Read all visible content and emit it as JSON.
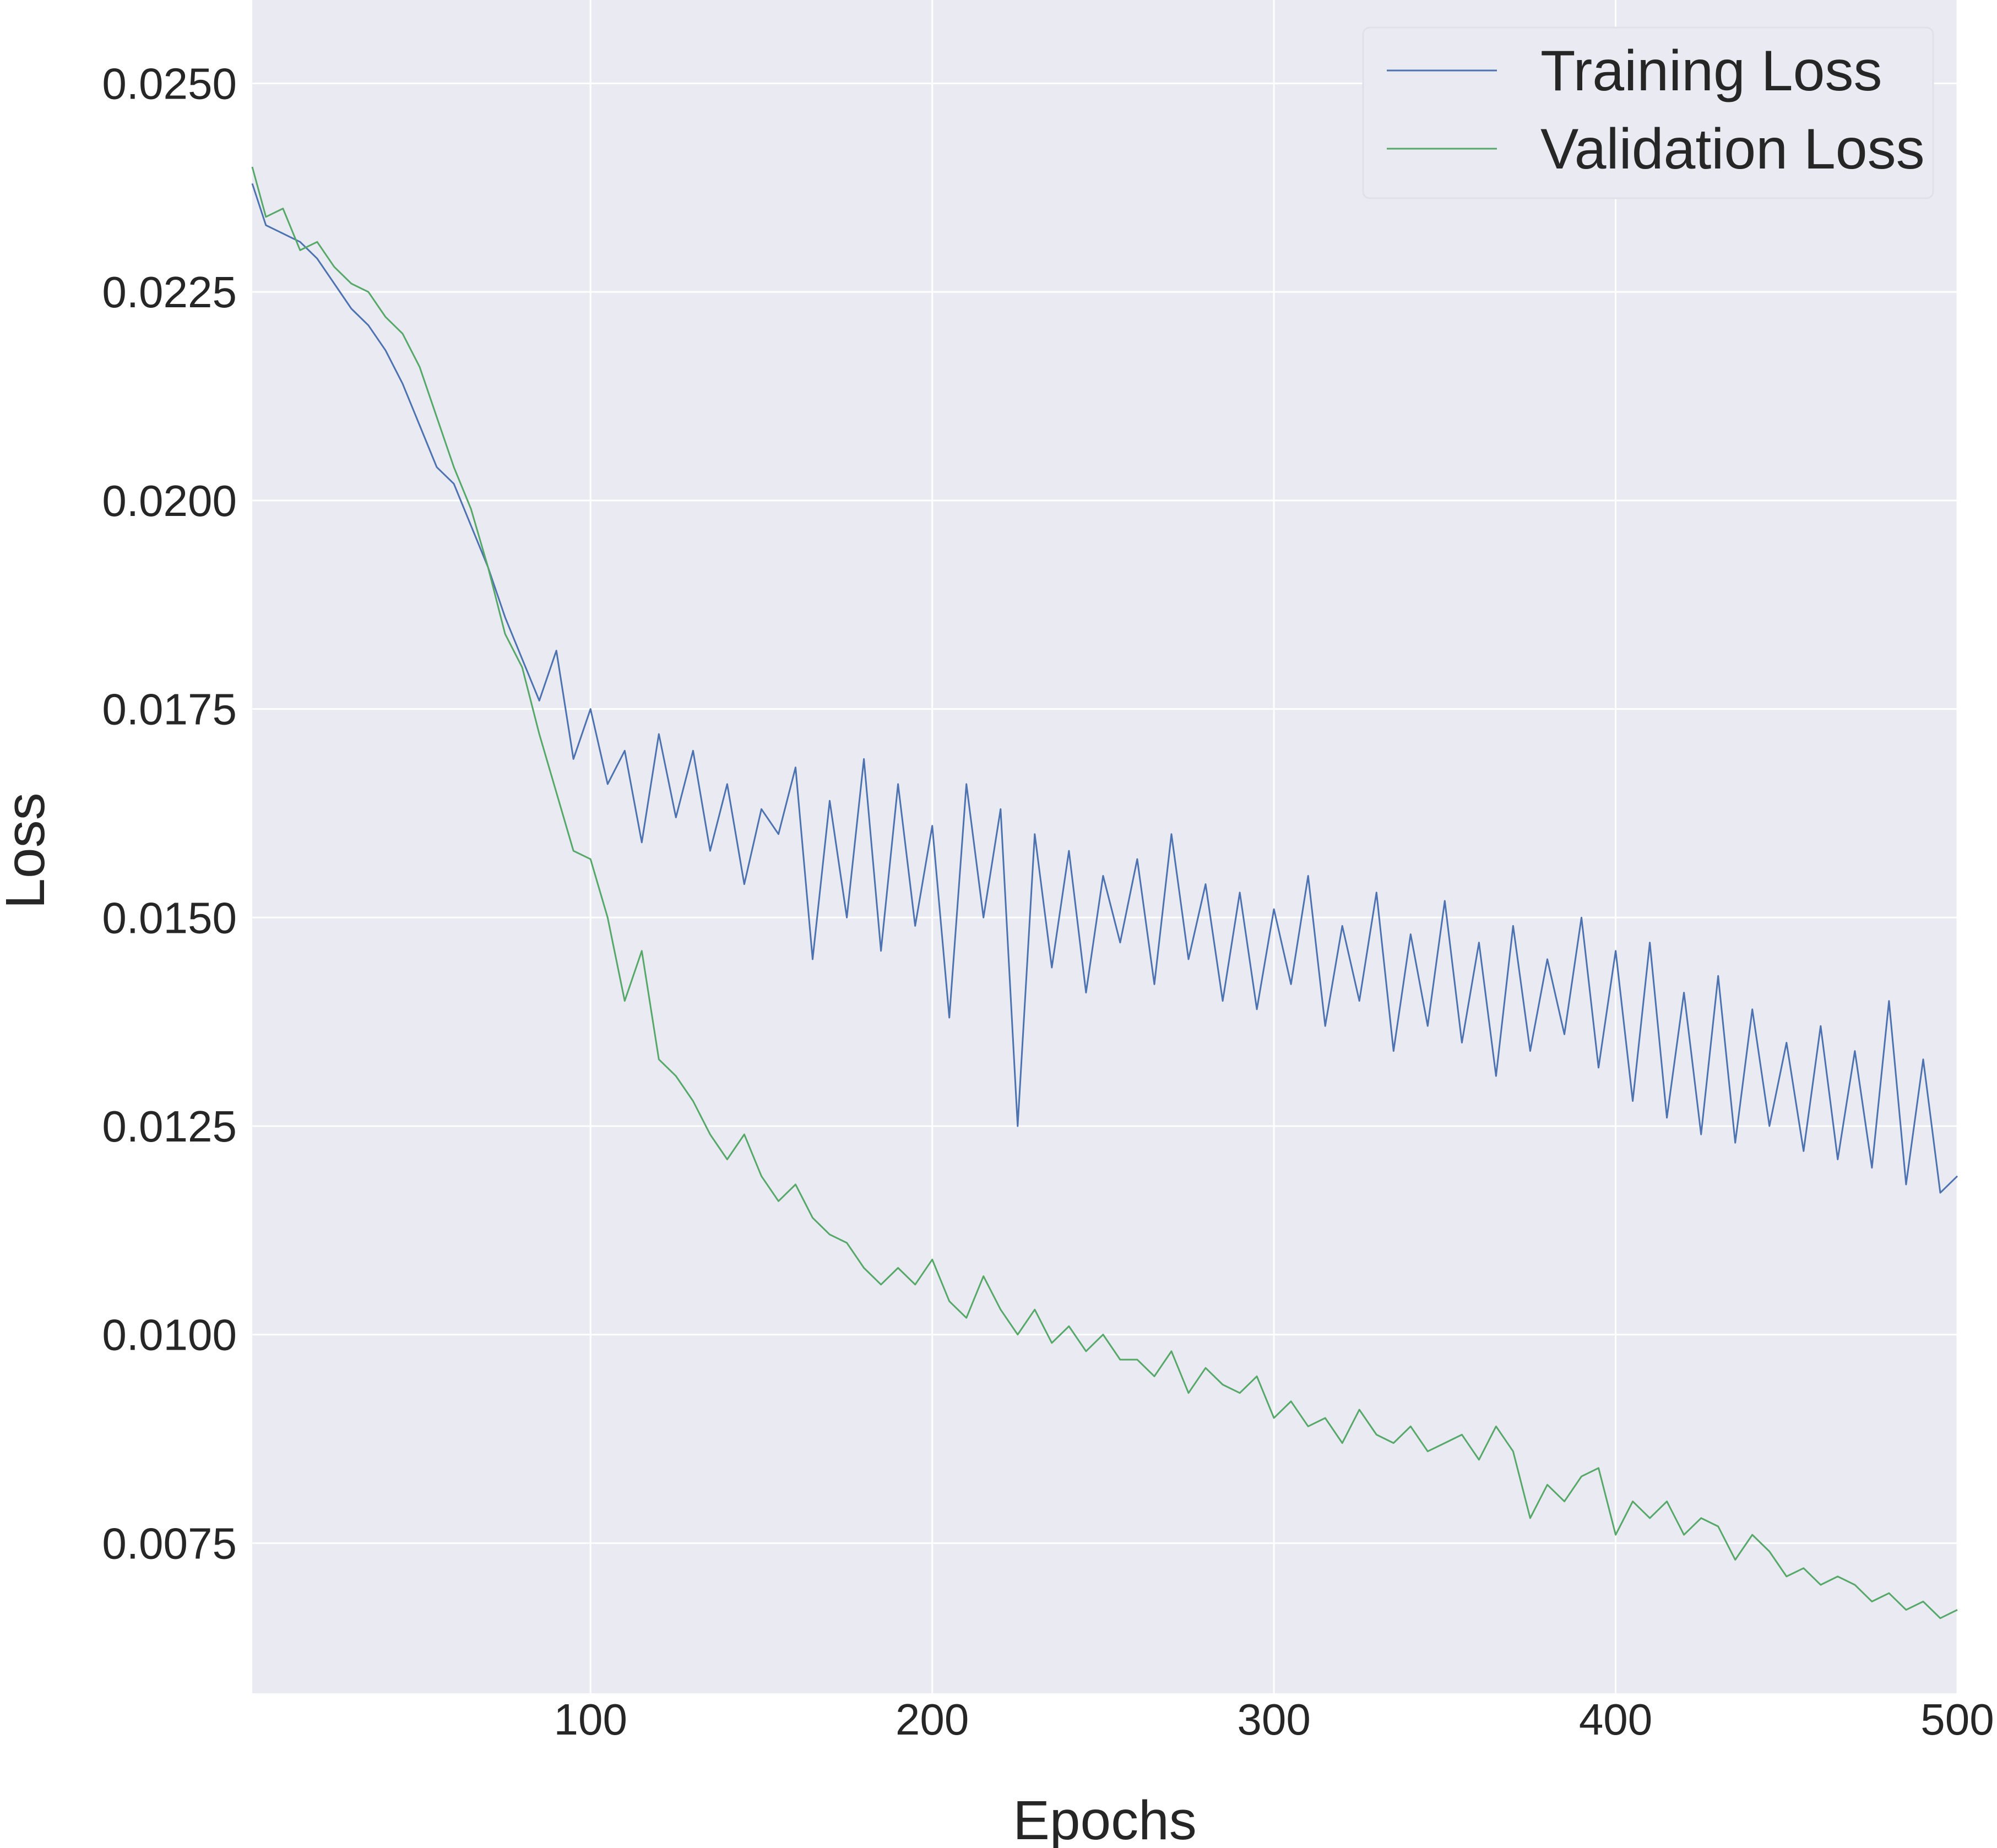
{
  "chart_data": {
    "type": "line",
    "title": "",
    "xlabel": "Epochs",
    "ylabel": "Loss",
    "xlim": [
      1,
      500
    ],
    "ylim": [
      0.0057,
      0.026
    ],
    "xticks": [
      100,
      200,
      300,
      400,
      500
    ],
    "xtick_labels": [
      "100",
      "200",
      "300",
      "400",
      "500"
    ],
    "yticks": [
      0.0075,
      0.01,
      0.0125,
      0.015,
      0.0175,
      0.02,
      0.0225,
      0.025
    ],
    "ytick_labels": [
      "0.0075",
      "0.0100",
      "0.0125",
      "0.0150",
      "0.0175",
      "0.0200",
      "0.0225",
      "0.0250"
    ],
    "grid": true,
    "legend_position": "top-right",
    "series": [
      {
        "name": "Training Loss",
        "color": "#4c72b0",
        "x": [
          1,
          5,
          10,
          15,
          20,
          25,
          30,
          35,
          40,
          45,
          50,
          55,
          60,
          65,
          70,
          75,
          80,
          85,
          90,
          95,
          100,
          105,
          110,
          115,
          120,
          125,
          130,
          135,
          140,
          145,
          150,
          155,
          160,
          165,
          170,
          175,
          180,
          185,
          190,
          195,
          200,
          205,
          210,
          215,
          220,
          225,
          230,
          235,
          240,
          245,
          250,
          255,
          260,
          265,
          270,
          275,
          280,
          285,
          290,
          295,
          300,
          305,
          310,
          315,
          320,
          325,
          330,
          335,
          340,
          345,
          350,
          355,
          360,
          365,
          370,
          375,
          380,
          385,
          390,
          395,
          400,
          405,
          410,
          415,
          420,
          425,
          430,
          435,
          440,
          445,
          450,
          455,
          460,
          465,
          470,
          475,
          480,
          485,
          490,
          495,
          500
        ],
        "values": [
          0.0238,
          0.0233,
          0.0232,
          0.0231,
          0.0229,
          0.0226,
          0.0223,
          0.0221,
          0.0218,
          0.0214,
          0.0209,
          0.0204,
          0.0202,
          0.0197,
          0.0192,
          0.0186,
          0.0181,
          0.0176,
          0.0182,
          0.0169,
          0.0175,
          0.0166,
          0.017,
          0.0159,
          0.0172,
          0.0162,
          0.017,
          0.0158,
          0.0166,
          0.0154,
          0.0163,
          0.016,
          0.0168,
          0.0145,
          0.0164,
          0.015,
          0.0169,
          0.0146,
          0.0166,
          0.0149,
          0.0161,
          0.0138,
          0.0166,
          0.015,
          0.0163,
          0.0125,
          0.016,
          0.0144,
          0.0158,
          0.0141,
          0.0155,
          0.0147,
          0.0157,
          0.0142,
          0.016,
          0.0145,
          0.0154,
          0.014,
          0.0153,
          0.0139,
          0.0151,
          0.0142,
          0.0155,
          0.0137,
          0.0149,
          0.014,
          0.0153,
          0.0134,
          0.0148,
          0.0137,
          0.0152,
          0.0135,
          0.0147,
          0.0131,
          0.0149,
          0.0134,
          0.0145,
          0.0136,
          0.015,
          0.0132,
          0.0146,
          0.0128,
          0.0147,
          0.0126,
          0.0141,
          0.0124,
          0.0143,
          0.0123,
          0.0139,
          0.0125,
          0.0135,
          0.0122,
          0.0137,
          0.0121,
          0.0134,
          0.012,
          0.014,
          0.0118,
          0.0133,
          0.0117,
          0.0119
        ]
      },
      {
        "name": "Validation Loss",
        "color": "#55a868",
        "x": [
          1,
          5,
          10,
          15,
          20,
          25,
          30,
          35,
          40,
          45,
          50,
          55,
          60,
          65,
          70,
          75,
          80,
          85,
          90,
          95,
          100,
          105,
          110,
          115,
          120,
          125,
          130,
          135,
          140,
          145,
          150,
          155,
          160,
          165,
          170,
          175,
          180,
          185,
          190,
          195,
          200,
          205,
          210,
          215,
          220,
          225,
          230,
          235,
          240,
          245,
          250,
          255,
          260,
          265,
          270,
          275,
          280,
          285,
          290,
          295,
          300,
          305,
          310,
          315,
          320,
          325,
          330,
          335,
          340,
          345,
          350,
          355,
          360,
          365,
          370,
          375,
          380,
          385,
          390,
          395,
          400,
          405,
          410,
          415,
          420,
          425,
          430,
          435,
          440,
          445,
          450,
          455,
          460,
          465,
          470,
          475,
          480,
          485,
          490,
          495,
          500
        ],
        "values": [
          0.024,
          0.0234,
          0.0235,
          0.023,
          0.0231,
          0.0228,
          0.0226,
          0.0225,
          0.0222,
          0.022,
          0.0216,
          0.021,
          0.0204,
          0.0199,
          0.0192,
          0.0184,
          0.018,
          0.0172,
          0.0165,
          0.0158,
          0.0157,
          0.015,
          0.014,
          0.0146,
          0.0133,
          0.0131,
          0.0128,
          0.0124,
          0.0121,
          0.0124,
          0.0119,
          0.0116,
          0.0118,
          0.0114,
          0.0112,
          0.0111,
          0.0108,
          0.0106,
          0.0108,
          0.0106,
          0.0109,
          0.0104,
          0.0102,
          0.0107,
          0.0103,
          0.01,
          0.0103,
          0.0099,
          0.0101,
          0.0098,
          0.01,
          0.0097,
          0.0097,
          0.0095,
          0.0098,
          0.0093,
          0.0096,
          0.0094,
          0.0093,
          0.0095,
          0.009,
          0.0092,
          0.0089,
          0.009,
          0.0087,
          0.0091,
          0.0088,
          0.0087,
          0.0089,
          0.0086,
          0.0087,
          0.0088,
          0.0085,
          0.0089,
          0.0086,
          0.0078,
          0.0082,
          0.008,
          0.0083,
          0.0084,
          0.0076,
          0.008,
          0.0078,
          0.008,
          0.0076,
          0.0078,
          0.0077,
          0.0073,
          0.0076,
          0.0074,
          0.0071,
          0.0072,
          0.007,
          0.0071,
          0.007,
          0.0068,
          0.0069,
          0.0067,
          0.0068,
          0.0066,
          0.0067
        ]
      }
    ]
  }
}
